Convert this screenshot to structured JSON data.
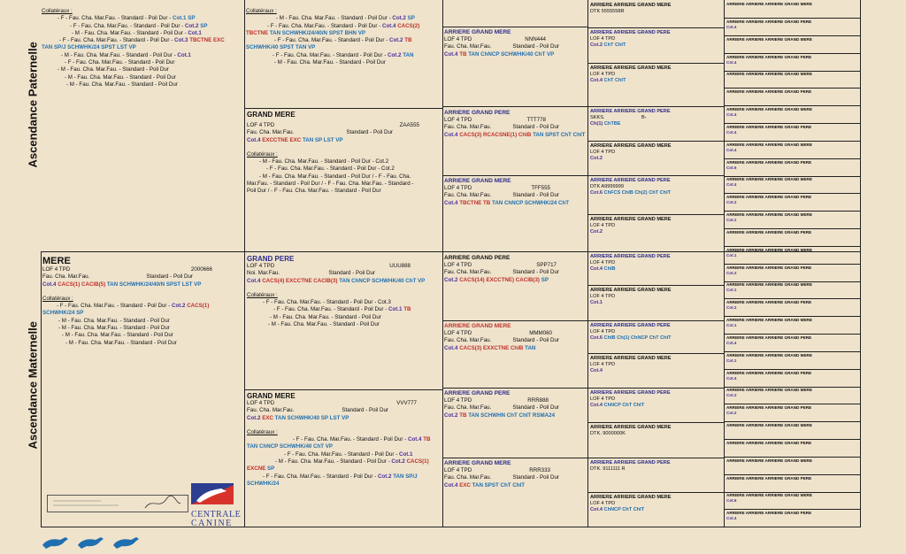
{
  "sides": {
    "paternal": "Ascendance Paternelle",
    "maternal": "Ascendance Maternelle"
  },
  "father_collat": {
    "title": "Collatéraux :",
    "lines": [
      [
        {
          "t": "- F - Fau. Cha. Mar.Fau. - Standard - Poil Dur - ",
          "c": ""
        },
        {
          "t": "Cot.1 ",
          "c": "blue"
        },
        {
          "t": "SP",
          "c": "blue"
        }
      ],
      [
        {
          "t": "- F - Fau. Cha. Mar.Fau. - Standard - Poil Dur - ",
          "c": ""
        },
        {
          "t": "Cot.2 ",
          "c": "purple"
        },
        {
          "t": "SP",
          "c": "blue"
        }
      ],
      [
        {
          "t": "- M - Fau. Cha. Mar.Fau. - Standard - Poil Dur - ",
          "c": ""
        },
        {
          "t": "Cot.1",
          "c": "purple"
        }
      ],
      [
        {
          "t": "- F - Fau. Cha. Mar.Fau. - Standard - Poil Dur - ",
          "c": ""
        },
        {
          "t": "Cot.3 ",
          "c": "purple"
        },
        {
          "t": "TBCTNE EXC",
          "c": "red"
        }
      ],
      [
        {
          "t": "TAN SP/J SCHWHK/24 SPST LST VP",
          "c": "blue"
        }
      ],
      [
        {
          "t": "- M - Fau. Cha. Mar.Fau. - Standard - Poil Dur - ",
          "c": ""
        },
        {
          "t": "Cot.1",
          "c": "purple"
        }
      ],
      [
        {
          "t": "- F - Fau. Cha. Mar.Fau. - Standard - Poil Dur",
          "c": ""
        }
      ],
      [
        {
          "t": "- M - Fau. Cha. Mar.Fau. - Standard - Poil Dur",
          "c": ""
        }
      ],
      [
        {
          "t": "- M - Fau. Cha. Mar.Fau. - Standard - Poil Dur",
          "c": ""
        }
      ],
      [
        {
          "t": "- M - Fau. Cha. Mar.Fau. - Standard - Poil Dur",
          "c": ""
        }
      ]
    ]
  },
  "gp_paternal_collat": {
    "title": "Collatéraux :",
    "lines": [
      [
        {
          "t": "- M - Fau. Cha. Mar.Fau. - Standard - Poil Dur - ",
          "c": ""
        },
        {
          "t": "Cot.2 ",
          "c": "purple"
        },
        {
          "t": "SP",
          "c": "blue"
        }
      ],
      [
        {
          "t": "- F - Fau. Cha. Mar.Fau. - Standard - Poil Dur - ",
          "c": ""
        },
        {
          "t": "Cot.4 ",
          "c": "purple"
        },
        {
          "t": "CACS(2)",
          "c": "red"
        }
      ],
      [
        {
          "t": "TBCTNE ",
          "c": "red"
        },
        {
          "t": "TAN SCHWHK/24/40/N SPST BHN VP",
          "c": "blue"
        }
      ],
      [
        {
          "t": "- F - Fau. Cha. Mar.Fau. - Standard - Poil Dur - ",
          "c": ""
        },
        {
          "t": "Cot.2 ",
          "c": "purple"
        },
        {
          "t": "TB",
          "c": "red"
        }
      ],
      [
        {
          "t": "SCHWHK/40 SPST TAN VP",
          "c": "blue"
        }
      ],
      [
        {
          "t": "- F - Fau. Cha. Mar.Fau. - Standard - Poil Dur - ",
          "c": ""
        },
        {
          "t": "Cot.2 ",
          "c": "purple"
        },
        {
          "t": "TAN",
          "c": "blue"
        }
      ],
      [
        {
          "t": "- M - Fau. Cha. Mar.Fau. - Standard - Poil Dur",
          "c": ""
        }
      ]
    ]
  },
  "gm_paternal": {
    "title": "GRAND MERE",
    "lof": "LOF 4 TPD",
    "id": "ZAA555",
    "desc": "Fau. Cha. Mar.Fau.",
    "std": "Standard - Poil Dur",
    "cot": "Cot.4",
    "titles_red": "EXCCTNE EXC",
    "titles_blue": "TAN SP LST VP",
    "collat_title": "Collatéraux :",
    "collat": [
      "- M - Fau. Cha. Mar.Fau. - Standard - Poil Dur - Cot.2",
      "- F - Fau. Cha. Mar.Fau. - Standard - Poil Dur - Cot.2",
      "- M - Fau. Cha. Mar.Fau. - Standard - Poil Dur /          - F - Fau. Cha.",
      "Mar.Fau. - Standard - Poil Dur /          - F - Fau. Cha. Mar.Fau. - Standard -",
      "Poil Dur /          - F - Fau. Cha. Mar.Fau. - Standard - Poil Dur"
    ]
  },
  "mother": {
    "title": "MERE",
    "lof": "LOF 4 TPD",
    "id": "2000666",
    "desc": "Fau. Cha. Mar.Fau.",
    "std": "Standard - Poil Dur",
    "cot": "Cot.4",
    "titles_red": "CACS(1) CACIB(5)",
    "titles_blue": "TAN SCHWHK/24/40/N SPST LST VP",
    "collat_title": "Collatéraux :",
    "collat": [
      [
        {
          "t": "- F - Fau. Cha. Mar.Fau. - Standard - Poil Dur - ",
          "c": ""
        },
        {
          "t": "Cot.2 ",
          "c": "purple"
        },
        {
          "t": "CACS(1)",
          "c": "red"
        }
      ],
      [
        {
          "t": "SCHWHK/24 SP",
          "c": "blue"
        }
      ],
      [
        {
          "t": "- M - Fau. Cha. Mar.Fau. - Standard - Poil Dur",
          "c": ""
        }
      ],
      [
        {
          "t": "- M - Fau. Cha. Mar.Fau. - Standard - Poil Dur",
          "c": ""
        }
      ],
      [
        {
          "t": "- M - Fau. Cha. Mar.Fau. - Standard - Poil Dur",
          "c": ""
        }
      ],
      [
        {
          "t": "- M - Fau. Cha. Mar.Fau. - Standard - Poil Dur",
          "c": ""
        }
      ]
    ]
  },
  "gp_maternal": {
    "title": "GRAND PERE",
    "lof": "LOF 4 TPD",
    "id": "UUU888",
    "desc": "Noi. Mar.Fau.",
    "std": "Standard - Poil Dur",
    "cot": "Cot.4",
    "titles_red": "CACS(4) EXCCTNE CACIB(3)",
    "titles_blue": "TAN ChNCP SCHWHK/40 ChT VP",
    "collat_title": "Collatéraux :",
    "collat": [
      [
        {
          "t": "- F - Fau. Cha. Mar.Fau. - Standard - Poil Dur - Cot.3",
          "c": ""
        }
      ],
      [
        {
          "t": "- F - Fau. Cha. Mar.Fau. - Standard - Poil Dur - ",
          "c": ""
        },
        {
          "t": "Cot.1 ",
          "c": "purple"
        },
        {
          "t": "TB",
          "c": "red"
        }
      ],
      [
        {
          "t": "- M - Fau. Cha. Mar.Fau. - Standard - Poil Dur",
          "c": ""
        }
      ],
      [
        {
          "t": "- M - Fau. Cha. Mar.Fau. - Standard - Poil Dur",
          "c": ""
        }
      ]
    ]
  },
  "gm_maternal": {
    "title": "GRAND MERE",
    "lof": "LOF 4 TPD",
    "id": "VVV777",
    "desc": "Fau. Cha. Mar.Fau.",
    "std": "Standard - Poil Dur",
    "cot": "Cot.2",
    "titles_red": "EXC",
    "titles_blue": "TAN SCHWHK/40 SP LST VP",
    "collat_title": "Collatéraux :",
    "collat": [
      [
        {
          "t": "- F - Fau. Cha. Mar.Fau. - Standard - Poil Dur - ",
          "c": ""
        },
        {
          "t": "Cot.4 ",
          "c": "purple"
        },
        {
          "t": "TB",
          "c": "red"
        }
      ],
      [
        {
          "t": "TAN ChNCP SCHWHK/40 ChT VP",
          "c": "blue"
        }
      ],
      [
        {
          "t": "- F - Fau. Cha. Mar.Fau. - Standard - Poil Dur - ",
          "c": ""
        },
        {
          "t": "Cot.1",
          "c": "purple"
        }
      ],
      [
        {
          "t": "- M - Fau. Cha. Mar.Fau. - Standard - Poil Dur - ",
          "c": ""
        },
        {
          "t": "Cot.2 ",
          "c": "purple"
        },
        {
          "t": "CACS(1)",
          "c": "red"
        }
      ],
      [
        {
          "t": "EXCNE ",
          "c": "red"
        },
        {
          "t": "SP",
          "c": "blue"
        }
      ],
      [
        {
          "t": "- F - Fau. Cha. Mar.Fau. - Standard - Poil Dur - ",
          "c": ""
        },
        {
          "t": "Cot.2 ",
          "c": "purple"
        },
        {
          "t": "TAN SP/J",
          "c": "blue"
        }
      ],
      [
        {
          "t": "SCHWHK/24",
          "c": "blue"
        }
      ]
    ]
  },
  "agp": [
    {
      "title": "ARRIERE GRAND MERE",
      "lof": "LOF 4 TPD",
      "id": "NNN444",
      "desc": "Fau. Cha. Mar.Fau.",
      "std": "Standard - Poil Dur",
      "cot": "Cot.4",
      "red": "TB",
      "blue": "TAN ChNCP SCHWHK/40 ChT VP"
    },
    {
      "title": "ARRIERE GRAND PERE",
      "lof": "LOF 4 TPD",
      "id": "TTT778",
      "desc": "Fau. Cha. Mar.Fau.",
      "std": "Standard - Poil Dur",
      "cot": "Cot.4",
      "red": "CACS(3) RCACSNE(1) ChIB",
      "blue": "TAN SPST ChT ChIT"
    },
    {
      "title": "ARRIERE GRAND MERE",
      "lof": "LOF 4 TPD",
      "id": "TFF555",
      "desc": "Fau. Cha. Mar.Fau.",
      "std": "Standard - Poil Dur",
      "cot": "Cot.4",
      "red": "TBCTNE TB",
      "blue": "TAN ChNCP SCHWHK/24 ChT"
    },
    {
      "title": "ARRIERE GRAND PERE",
      "lof": "LOF 4 TPD",
      "id": "SPP717",
      "desc": "Fau. Cha. Mar.Fau.",
      "std": "Standard - Poil Dur",
      "cot": "Cot.2",
      "red": "CACS(14) EXCCTNE) CACIB(3)",
      "blue": "SP"
    },
    {
      "title": "ARRIERE GRAND MERE",
      "lof": "LOF 4 TPD",
      "id": "MMM060",
      "desc": "Fau. Cha. Mar.Fau.",
      "std": "Standard - Poil Dur",
      "cot": "Cot.4",
      "red": "CACS(3) EXXCTNE ChIB",
      "blue": "TAN"
    },
    {
      "title": "ARRIERE GRAND PERE",
      "lof": "LOF 4 TPD",
      "id": "RRR888",
      "desc": "Fau. Cha. Mar.Fau.",
      "std": "Standard - Poil Dur",
      "cot": "Cot.2",
      "red": "TB",
      "blue": "TAN SCHWHN ChT ChIT RSMA24"
    },
    {
      "title": "ARRIERE GRAND MERE",
      "lof": "LOF 4 TPD",
      "id": "RRR333",
      "desc": "Fau. Cha. Mar.Fau.",
      "std": "Standard - Poil Dur",
      "cot": "Cot.4",
      "red": "EXC",
      "blue": "TAN SPST ChT ChIT"
    }
  ],
  "aagp": [
    {
      "title": "ARRIERE ARRIERE GRAND MERE",
      "l1": "DTK 5555558R",
      "l2": "",
      "cot": ""
    },
    {
      "title": "ARRIERE ARRIERE GRAND PERE",
      "l1": "LOF 4 TPD",
      "l2": "",
      "cot": "Cot.2",
      "extra": "ChT ChIT"
    },
    {
      "title": "ARRIERE ARRIERE GRAND MERE",
      "l1": "LOF 4 TPD",
      "l2": "",
      "cot": "Cot.4",
      "extra": "ChT ChIT"
    },
    {
      "title": "ARRIERE ARRIERE GRAND PERE",
      "l1": "SKKS.",
      "l2": "B-",
      "cot": "Ch(1)",
      "extra": "ChTBE"
    },
    {
      "title": "ARRIERE ARRIERE GRAND MERE",
      "l1": "LOF 4 TPD",
      "l2": "",
      "cot": "Cot.2",
      "extra": ""
    },
    {
      "title": "ARRIERE ARRIERE GRAND PERE",
      "l1": "DTK A9999999",
      "l2": "",
      "cot": "Cot.6",
      "extra": "ChFCS ChIB Ch(2) ChT ChIT"
    },
    {
      "title": "ARRIERE ARRIERE GRAND MERE",
      "l1": "LOF 4 TPD",
      "l2": "",
      "cot": "Cot.2",
      "extra": ""
    },
    {
      "title": "ARRIERE ARRIERE GRAND PERE",
      "l1": "LOF 4 TPD",
      "l2": "",
      "cot": "Cot.4",
      "extra": "ChIB"
    },
    {
      "title": "ARRIERE ARRIERE GRAND MERE",
      "l1": "LOF 4 TPD",
      "l2": "",
      "cot": "Cot.1",
      "extra": ""
    },
    {
      "title": "ARRIERE ARRIERE GRAND PERE",
      "l1": "LOF 4 TPD",
      "l2": "",
      "cot": "Cot.6",
      "extra": "ChIB Ch(1) ChNCP ChT ChIT"
    },
    {
      "title": "ARRIERE ARRIERE GRAND MERE",
      "l1": "LOF 4 TPD",
      "l2": "",
      "cot": "Cot.4",
      "extra": ""
    },
    {
      "title": "ARRIERE ARRIERE GRAND PERE",
      "l1": "LOF 4 TPD",
      "l2": "",
      "cot": "Cot.4",
      "extra": "ChNCP ChT ChIT"
    },
    {
      "title": "ARRIERE ARRIERE GRAND MERE",
      "l1": "DTK. 9000000K",
      "l2": "",
      "cot": "",
      "extra": ""
    },
    {
      "title": "ARRIERE ARRIERE GRAND PERE",
      "l1": "DTK. 9111111 R",
      "l2": "",
      "cot": "",
      "extra": ""
    },
    {
      "title": "ARRIERE ARRIERE GRAND MERE",
      "l1": "LOF 4 TPD",
      "l2": "",
      "cot": "Cot.4",
      "extra": "ChNCP ChT ChIT"
    }
  ],
  "col5_small": [
    {
      "t": "ARRIERE ARRIERE ARRIERE GRAND MERE",
      "c": ""
    },
    {
      "t": "ARRIERE ARRIERE ARRIERE GRAND PERE",
      "c": "Cot.4"
    },
    {
      "t": "ARRIERE ARRIERE ARRIERE GRAND MERE",
      "c": ""
    },
    {
      "t": "ARRIERE ARRIERE ARRIERE GRAND PERE",
      "c": "Cot.4"
    },
    {
      "t": "ARRIERE ARRIERE ARRIERE GRAND MERE",
      "c": ""
    },
    {
      "t": "ARRIERE ARRIERE ARRIERE GRAND PERE",
      "c": ""
    },
    {
      "t": "ARRIERE ARRIERE ARRIERE GRAND MERE",
      "c": "Cot.4"
    },
    {
      "t": "ARRIERE ARRIERE ARRIERE GRAND PERE",
      "c": "Cot.4"
    },
    {
      "t": "ARRIERE ARRIERE ARRIERE GRAND MERE",
      "c": "Cot.4"
    },
    {
      "t": "ARRIERE ARRIERE ARRIERE GRAND PERE",
      "c": "Cot.6"
    },
    {
      "t": "ARRIERE ARRIERE ARRIERE GRAND MERE",
      "c": "Cot.4"
    },
    {
      "t": "ARRIERE ARRIERE ARRIERE GRAND PERE",
      "c": "Cot.2"
    },
    {
      "t": "ARRIERE ARRIERE ARRIERE GRAND MERE",
      "c": "Cot.1"
    },
    {
      "t": "ARRIERE ARRIERE ARRIERE GRAND PERE",
      "c": ""
    },
    {
      "t": "ARRIERE ARRIERE ARRIERE GRAND MERE",
      "c": "Cot.1"
    },
    {
      "t": "ARRIERE ARRIERE ARRIERE GRAND PERE",
      "c": "Cot.2"
    },
    {
      "t": "ARRIERE ARRIERE ARRIERE GRAND MERE",
      "c": "Cot.1"
    },
    {
      "t": "ARRIERE ARRIERE ARRIERE GRAND PERE",
      "c": "Cot.2"
    },
    {
      "t": "ARRIERE ARRIERE ARRIERE GRAND MERE",
      "c": "Cot.1"
    },
    {
      "t": "ARRIERE ARRIERE ARRIERE GRAND PERE",
      "c": "Cot.4"
    },
    {
      "t": "ARRIERE ARRIERE ARRIERE GRAND MERE",
      "c": "Cot.1"
    },
    {
      "t": "ARRIERE ARRIERE ARRIERE GRAND PERE",
      "c": "Cot.4"
    },
    {
      "t": "ARRIERE ARRIERE ARRIERE GRAND MERE",
      "c": "Cot.2"
    },
    {
      "t": "ARRIERE ARRIERE ARRIERE GRAND PERE",
      "c": "Cot.2"
    },
    {
      "t": "ARRIERE ARRIERE ARRIERE GRAND MERE",
      "c": ""
    },
    {
      "t": "ARRIERE ARRIERE ARRIERE GRAND PERE",
      "c": ""
    },
    {
      "t": "ARRIERE ARRIERE ARRIERE GRAND MERE",
      "c": ""
    },
    {
      "t": "ARRIERE ARRIERE ARRIERE GRAND PERE",
      "c": ""
    },
    {
      "t": "ARRIERE ARRIERE ARRIERE GRAND MERE",
      "c": "Cot.6"
    },
    {
      "t": "ARRIERE ARRIERE ARRIERE GRAND PERE",
      "c": "Cot.4"
    }
  ],
  "logo": {
    "line1": "Centrale",
    "line2": "Canine"
  },
  "colors": {
    "background": "#efe3cc",
    "red": "#c0302b",
    "blue": "#1f6fb0",
    "purple": "#4b2f9a"
  }
}
